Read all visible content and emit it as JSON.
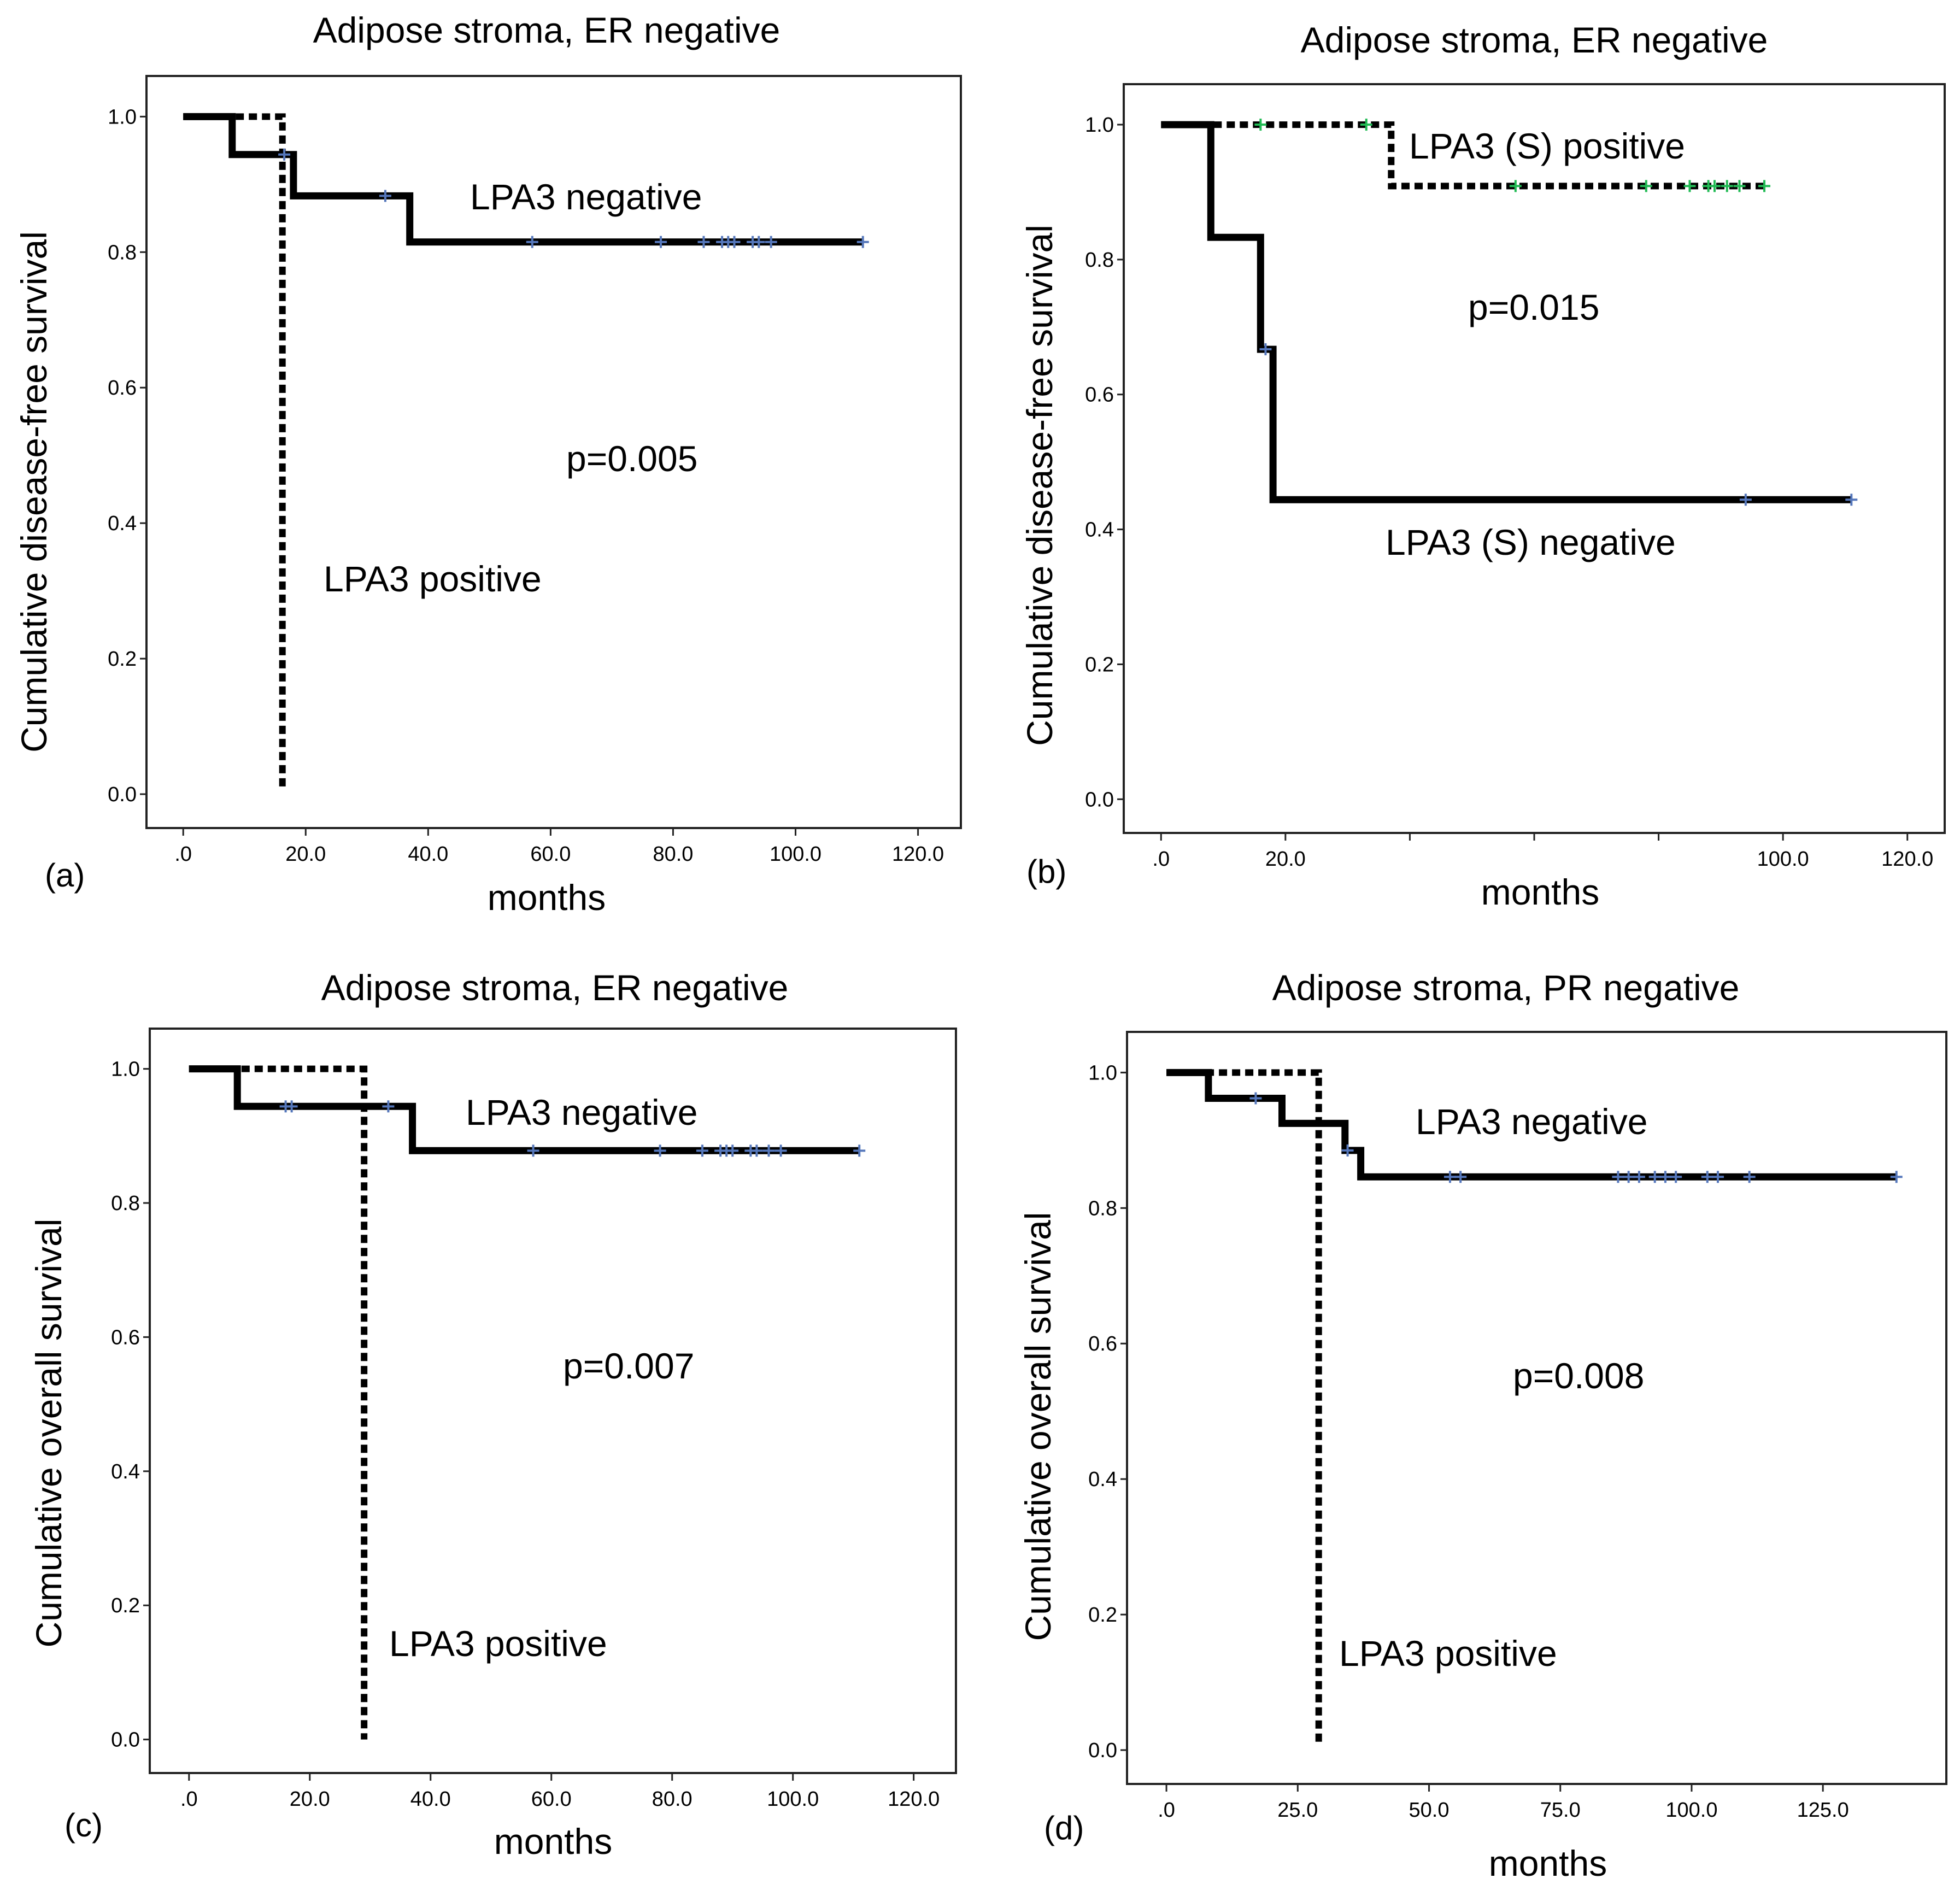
{
  "chart_data": [
    {
      "panel": "(a)",
      "type": "line",
      "subtype": "kaplan-meier",
      "title": "Adipose stroma, ER negative",
      "xlabel": "months",
      "ylabel": "Cumulative disease-free survival",
      "xlim": [
        -6,
        127
      ],
      "ylim": [
        -0.05,
        1.06
      ],
      "xticks": [
        0,
        20,
        40,
        60,
        80,
        100,
        120
      ],
      "xtick_labels": [
        ".0",
        "20.0",
        "40.0",
        "60.0",
        "80.0",
        "100.0",
        "120.0"
      ],
      "yticks": [
        0,
        0.2,
        0.4,
        0.6,
        0.8,
        1.0
      ],
      "ytick_labels": [
        "0.0",
        "0.2",
        "0.4",
        "0.6",
        "0.8",
        "1.0"
      ],
      "p_value": "p=0.005",
      "series": [
        {
          "name": "LPA3 negative",
          "style": "solid",
          "steps": [
            [
              0,
              1.0
            ],
            [
              8,
              1.0
            ],
            [
              8,
              0.944
            ],
            [
              18,
              0.944
            ],
            [
              18,
              0.883
            ],
            [
              37,
              0.883
            ],
            [
              37,
              0.815
            ],
            [
              111,
              0.815
            ]
          ],
          "censored": [
            [
              16.5,
              0.944
            ],
            [
              33,
              0.883
            ],
            [
              57,
              0.815
            ],
            [
              78,
              0.815
            ],
            [
              85,
              0.815
            ],
            [
              88,
              0.815
            ],
            [
              89,
              0.815
            ],
            [
              90,
              0.815
            ],
            [
              93,
              0.815
            ],
            [
              94,
              0.815
            ],
            [
              96,
              0.815
            ],
            [
              111,
              0.815
            ]
          ],
          "censor_color": "#5577bb"
        },
        {
          "name": "LPA3 positive",
          "style": "dashed",
          "steps": [
            [
              0,
              1.0
            ],
            [
              16.2,
              1.0
            ],
            [
              16.2,
              0.01
            ]
          ],
          "censored": [],
          "censor_color": "#5577bb"
        }
      ]
    },
    {
      "panel": "(b)",
      "type": "line",
      "subtype": "kaplan-meier",
      "title": "Adipose stroma, ER negative",
      "xlabel": "months",
      "ylabel": "Cumulative disease-free survival",
      "xlim": [
        -6,
        126
      ],
      "ylim": [
        -0.05,
        1.06
      ],
      "xticks": [
        0,
        20,
        40,
        60,
        80,
        100,
        120
      ],
      "xtick_labels": [
        ".0",
        "20.0",
        "",
        "",
        "",
        "100.0",
        "120.0"
      ],
      "yticks": [
        0,
        0.2,
        0.4,
        0.6,
        0.8,
        1.0
      ],
      "ytick_labels": [
        "0.0",
        "0.2",
        "0.4",
        "0.6",
        "0.8",
        "1.0"
      ],
      "p_value": "p=0.015",
      "series": [
        {
          "name": "LPA3 (S) positive",
          "style": "dashed",
          "steps": [
            [
              0,
              1.0
            ],
            [
              37,
              1.0
            ],
            [
              37,
              0.909
            ],
            [
              97,
              0.909
            ]
          ],
          "censored": [
            [
              16,
              1.0
            ],
            [
              33,
              1.0
            ],
            [
              57,
              0.909
            ],
            [
              78,
              0.909
            ],
            [
              85,
              0.909
            ],
            [
              88,
              0.909
            ],
            [
              89,
              0.909
            ],
            [
              91,
              0.909
            ],
            [
              93,
              0.909
            ],
            [
              97,
              0.909
            ]
          ],
          "censor_color": "#22bb55"
        },
        {
          "name": "LPA3 (S) negative",
          "style": "solid",
          "steps": [
            [
              0,
              1.0
            ],
            [
              8,
              1.0
            ],
            [
              8,
              0.833
            ],
            [
              16,
              0.833
            ],
            [
              16,
              0.667
            ],
            [
              18,
              0.667
            ],
            [
              18,
              0.444
            ],
            [
              111,
              0.444
            ]
          ],
          "censored": [
            [
              16.8,
              0.667
            ],
            [
              94,
              0.444
            ],
            [
              111,
              0.444
            ]
          ],
          "censor_color": "#5577bb"
        }
      ]
    },
    {
      "panel": "(c)",
      "type": "line",
      "subtype": "kaplan-meier",
      "title": "Adipose stroma, ER negative",
      "xlabel": "months",
      "ylabel": "Cumulative overall survival",
      "xlim": [
        -6.5,
        127
      ],
      "ylim": [
        -0.05,
        1.06
      ],
      "xticks": [
        0,
        20,
        40,
        60,
        80,
        100,
        120
      ],
      "xtick_labels": [
        ".0",
        "20.0",
        "40.0",
        "60.0",
        "80.0",
        "100.0",
        "120.0"
      ],
      "yticks": [
        0,
        0.2,
        0.4,
        0.6,
        0.8,
        1.0
      ],
      "ytick_labels": [
        "0.0",
        "0.2",
        "0.4",
        "0.6",
        "0.8",
        "1.0"
      ],
      "p_value": "p=0.007",
      "series": [
        {
          "name": "LPA3 negative",
          "style": "solid",
          "steps": [
            [
              0,
              1.0
            ],
            [
              8,
              1.0
            ],
            [
              8,
              0.944
            ],
            [
              37,
              0.944
            ],
            [
              37,
              0.878
            ],
            [
              111,
              0.878
            ]
          ],
          "censored": [
            [
              16,
              0.944
            ],
            [
              17,
              0.944
            ],
            [
              33,
              0.944
            ],
            [
              57,
              0.878
            ],
            [
              78,
              0.878
            ],
            [
              85,
              0.878
            ],
            [
              88,
              0.878
            ],
            [
              89,
              0.878
            ],
            [
              90,
              0.878
            ],
            [
              93,
              0.878
            ],
            [
              94,
              0.878
            ],
            [
              96,
              0.878
            ],
            [
              98,
              0.878
            ],
            [
              111,
              0.878
            ]
          ],
          "censor_color": "#5577bb"
        },
        {
          "name": "LPA3 positive",
          "style": "dashed",
          "steps": [
            [
              0,
              1.0
            ],
            [
              29,
              1.0
            ],
            [
              29,
              0.0
            ]
          ],
          "censored": [],
          "censor_color": "#5577bb"
        }
      ]
    },
    {
      "panel": "(d)",
      "type": "line",
      "subtype": "kaplan-meier",
      "title": "Adipose stroma, PR negative",
      "xlabel": "months",
      "ylabel": "Cumulative overall survival",
      "xlim": [
        -7.5,
        148.5
      ],
      "ylim": [
        -0.05,
        1.06
      ],
      "xticks": [
        0,
        25,
        50,
        75,
        100,
        125
      ],
      "xtick_labels": [
        ".0",
        "25.0",
        "50.0",
        "75.0",
        "100.0",
        "125.0"
      ],
      "yticks": [
        0,
        0.2,
        0.4,
        0.6,
        0.8,
        1.0
      ],
      "ytick_labels": [
        "0.0",
        "0.2",
        "0.4",
        "0.6",
        "0.8",
        "1.0"
      ],
      "p_value": "p=0.008",
      "series": [
        {
          "name": "LPA3 negative",
          "style": "solid",
          "steps": [
            [
              0,
              1.0
            ],
            [
              8,
              1.0
            ],
            [
              8,
              0.962
            ],
            [
              22,
              0.962
            ],
            [
              22,
              0.925
            ],
            [
              34,
              0.925
            ],
            [
              34,
              0.885
            ],
            [
              37,
              0.885
            ],
            [
              37,
              0.846
            ],
            [
              139,
              0.846
            ]
          ],
          "censored": [
            [
              17,
              0.962
            ],
            [
              34.5,
              0.885
            ],
            [
              54,
              0.846
            ],
            [
              56,
              0.846
            ],
            [
              86,
              0.846
            ],
            [
              88,
              0.846
            ],
            [
              90,
              0.846
            ],
            [
              93,
              0.846
            ],
            [
              95,
              0.846
            ],
            [
              97,
              0.846
            ],
            [
              103,
              0.846
            ],
            [
              105,
              0.846
            ],
            [
              111,
              0.846
            ],
            [
              139,
              0.846
            ]
          ],
          "censor_color": "#5577bb"
        },
        {
          "name": "LPA3 positive",
          "style": "dashed",
          "steps": [
            [
              0,
              1.0
            ],
            [
              29,
              1.0
            ],
            [
              29,
              0.01
            ]
          ],
          "censored": [],
          "censor_color": "#5577bb"
        }
      ]
    }
  ]
}
